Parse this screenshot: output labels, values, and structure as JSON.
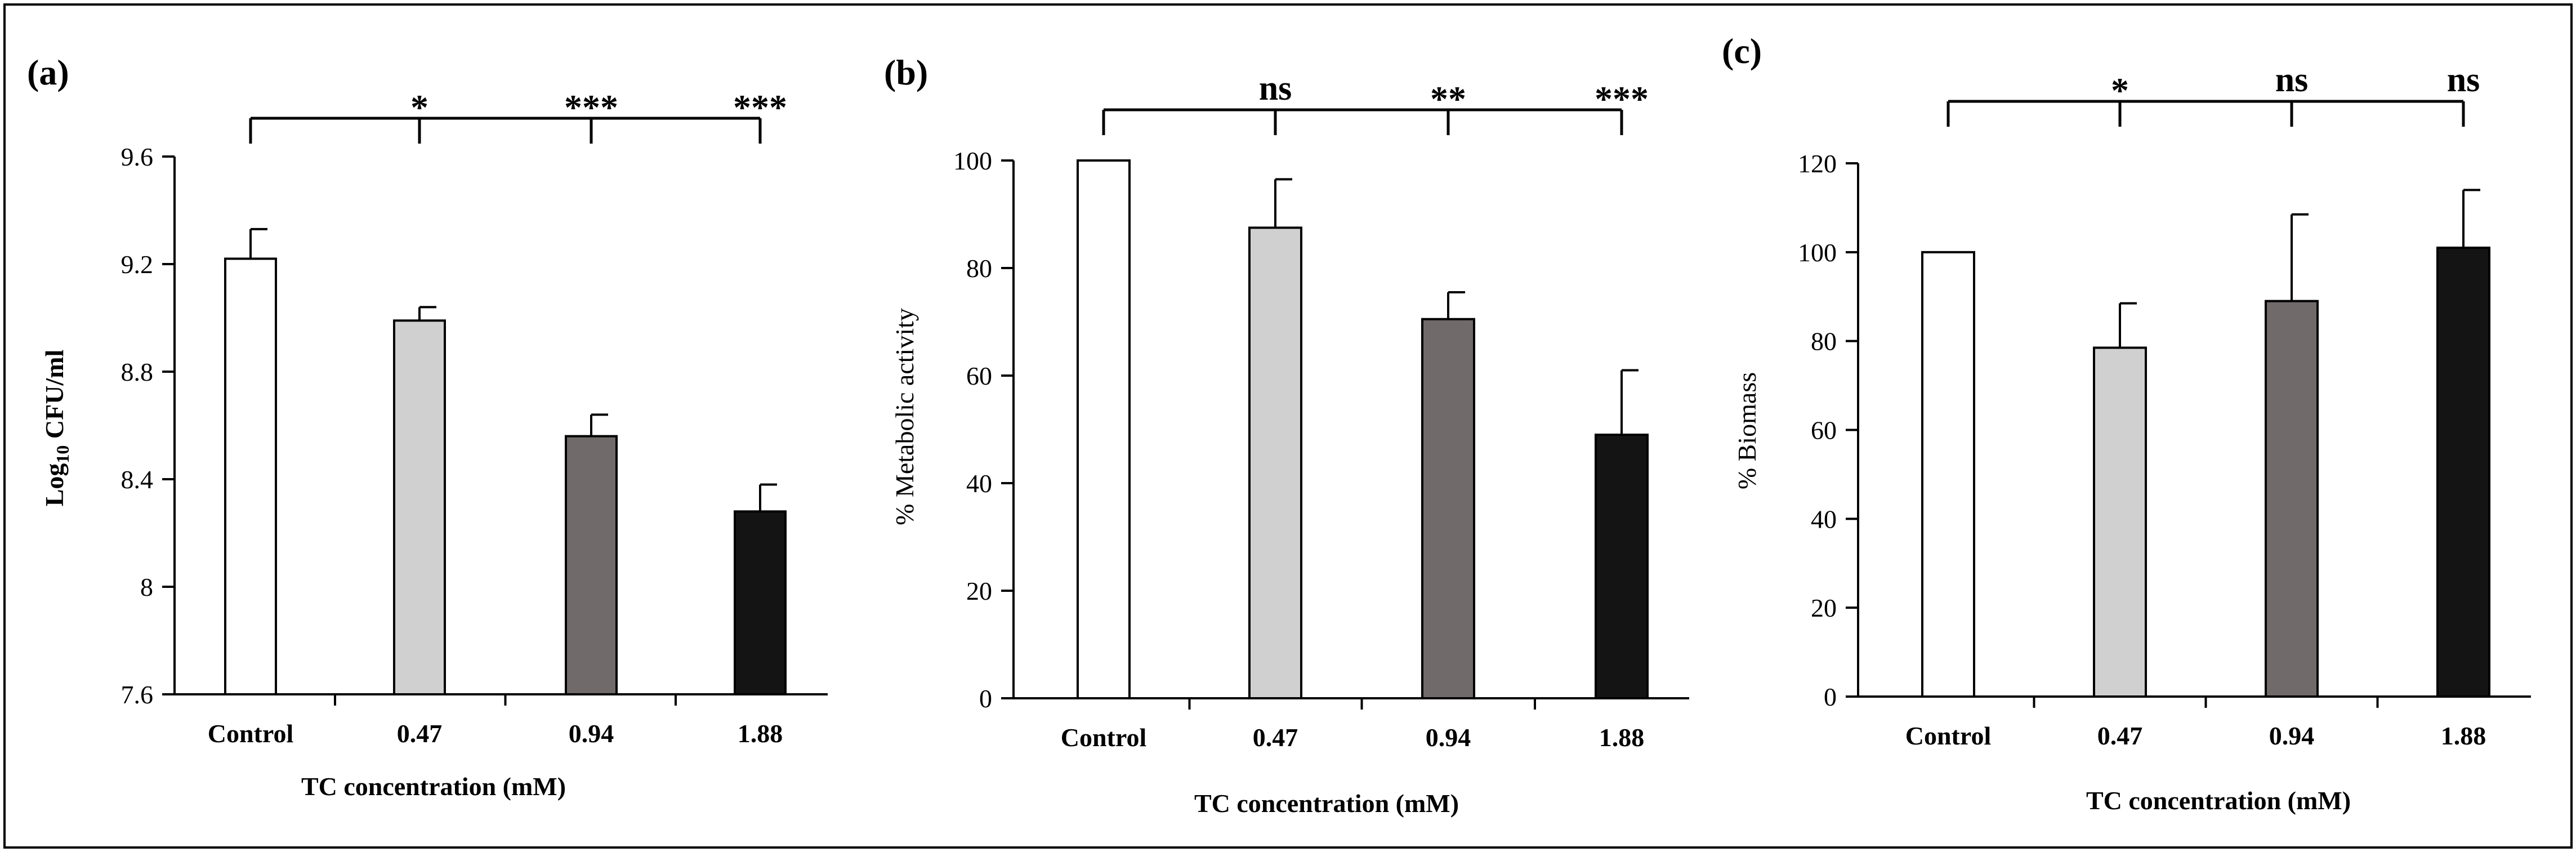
{
  "chart_data": [
    {
      "type": "bar",
      "panel_label": "(a)",
      "categories": [
        "Control",
        "0.47",
        "0.94",
        "1.88"
      ],
      "values": [
        9.22,
        8.99,
        8.56,
        8.28
      ],
      "errors": [
        0.11,
        0.05,
        0.08,
        0.1
      ],
      "bar_colors": [
        "#ffffff",
        "#d0d0d0",
        "#706a6a",
        "#141414"
      ],
      "xlabel": "TC concentration (mM)",
      "ylabel_main": "Log",
      "ylabel_sub": "10",
      "ylabel_rest": " CFU/ml",
      "ylim": [
        7.6,
        9.6
      ],
      "yticks": [
        "7.6",
        "8",
        "8.4",
        "8.8",
        "9.2",
        "9.6"
      ],
      "significance": [
        "*",
        "***",
        "***"
      ],
      "grid": false,
      "legend": "none"
    },
    {
      "type": "bar",
      "panel_label": "(b)",
      "categories": [
        "Control",
        "0.47",
        "0.94",
        "1.88"
      ],
      "values": [
        100,
        87.5,
        70.5,
        49
      ],
      "errors": [
        0,
        9,
        5,
        12
      ],
      "bar_colors": [
        "#ffffff",
        "#d0d0d0",
        "#706a6a",
        "#141414"
      ],
      "xlabel": "TC concentration (mM)",
      "ylabel": "% Metabolic activity",
      "ylim": [
        0,
        100
      ],
      "yticks": [
        "0",
        "20",
        "40",
        "60",
        "80",
        "100"
      ],
      "significance": [
        "ns",
        "**",
        "***"
      ],
      "grid": false,
      "legend": "none"
    },
    {
      "type": "bar",
      "panel_label": "(c)",
      "categories": [
        "Control",
        "0.47",
        "0.94",
        "1.88"
      ],
      "values": [
        100,
        78.5,
        89,
        101
      ],
      "errors": [
        0,
        10,
        19.5,
        13
      ],
      "bar_colors": [
        "#ffffff",
        "#d0d0d0",
        "#706a6a",
        "#141414"
      ],
      "xlabel": "TC concentration (mM)",
      "ylabel": "% Biomass",
      "ylim": [
        0,
        120
      ],
      "yticks": [
        "0",
        "20",
        "40",
        "60",
        "80",
        "100",
        "120"
      ],
      "significance": [
        "*",
        "ns",
        "ns"
      ],
      "grid": false,
      "legend": "none"
    }
  ]
}
